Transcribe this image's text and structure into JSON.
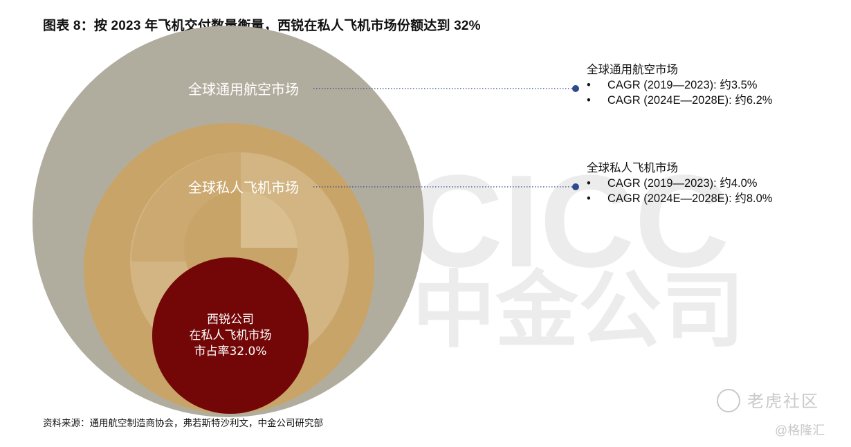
{
  "header": {
    "title": "图表 8：按 2023 年飞机交付数量衡量，西锐在私人飞机市场份额达到 32%"
  },
  "chart_data": {
    "type": "nested-circles",
    "title": "图表 8：按 2023 年飞机交付数量衡量，西锐在私人飞机市场份额达到 32%",
    "levels": [
      {
        "label": "全球通用航空市场",
        "color": "#b1ad9e",
        "cagr": [
          "CAGR (2019—2023): 约3.5%",
          "CAGR (2024E—2028E): 约6.2%"
        ]
      },
      {
        "label": "全球私人飞机市场",
        "color": "#c9a468",
        "cagr": [
          "CAGR (2019—2023): 约4.0%",
          "CAGR (2024E—2028E): 约8.0%"
        ]
      },
      {
        "label_lines": [
          "西锐公司",
          "在私人飞机市场",
          "市占率32.0%"
        ],
        "color": "#6b0000",
        "share_percent": 32.0
      }
    ]
  },
  "legend": [
    {
      "title": "全球通用航空市场",
      "bullet": "•",
      "items": [
        "CAGR (2019—2023): 约3.5%",
        "CAGR (2024E—2028E): 约6.2%"
      ]
    },
    {
      "title": "全球私人飞机市场",
      "bullet": "•",
      "items": [
        "CAGR (2019—2023): 约4.0%",
        "CAGR (2024E—2028E): 约8.0%"
      ]
    }
  ],
  "footer": {
    "source": "资料来源：通用航空制造商协会，弗若斯特沙利文，中金公司研究部"
  },
  "watermarks": {
    "cicc_latin": "CICC",
    "cicc_cn": "中金公司",
    "tiger": "老虎社区",
    "gelonghui": "@格隆汇"
  },
  "colors": {
    "outer": "#b1ad9e",
    "middle": "#c9a468",
    "middle_light": "#d4b988",
    "inner": "#6b0000",
    "connector": "#2e4a8c",
    "watermark": "#ececec"
  }
}
